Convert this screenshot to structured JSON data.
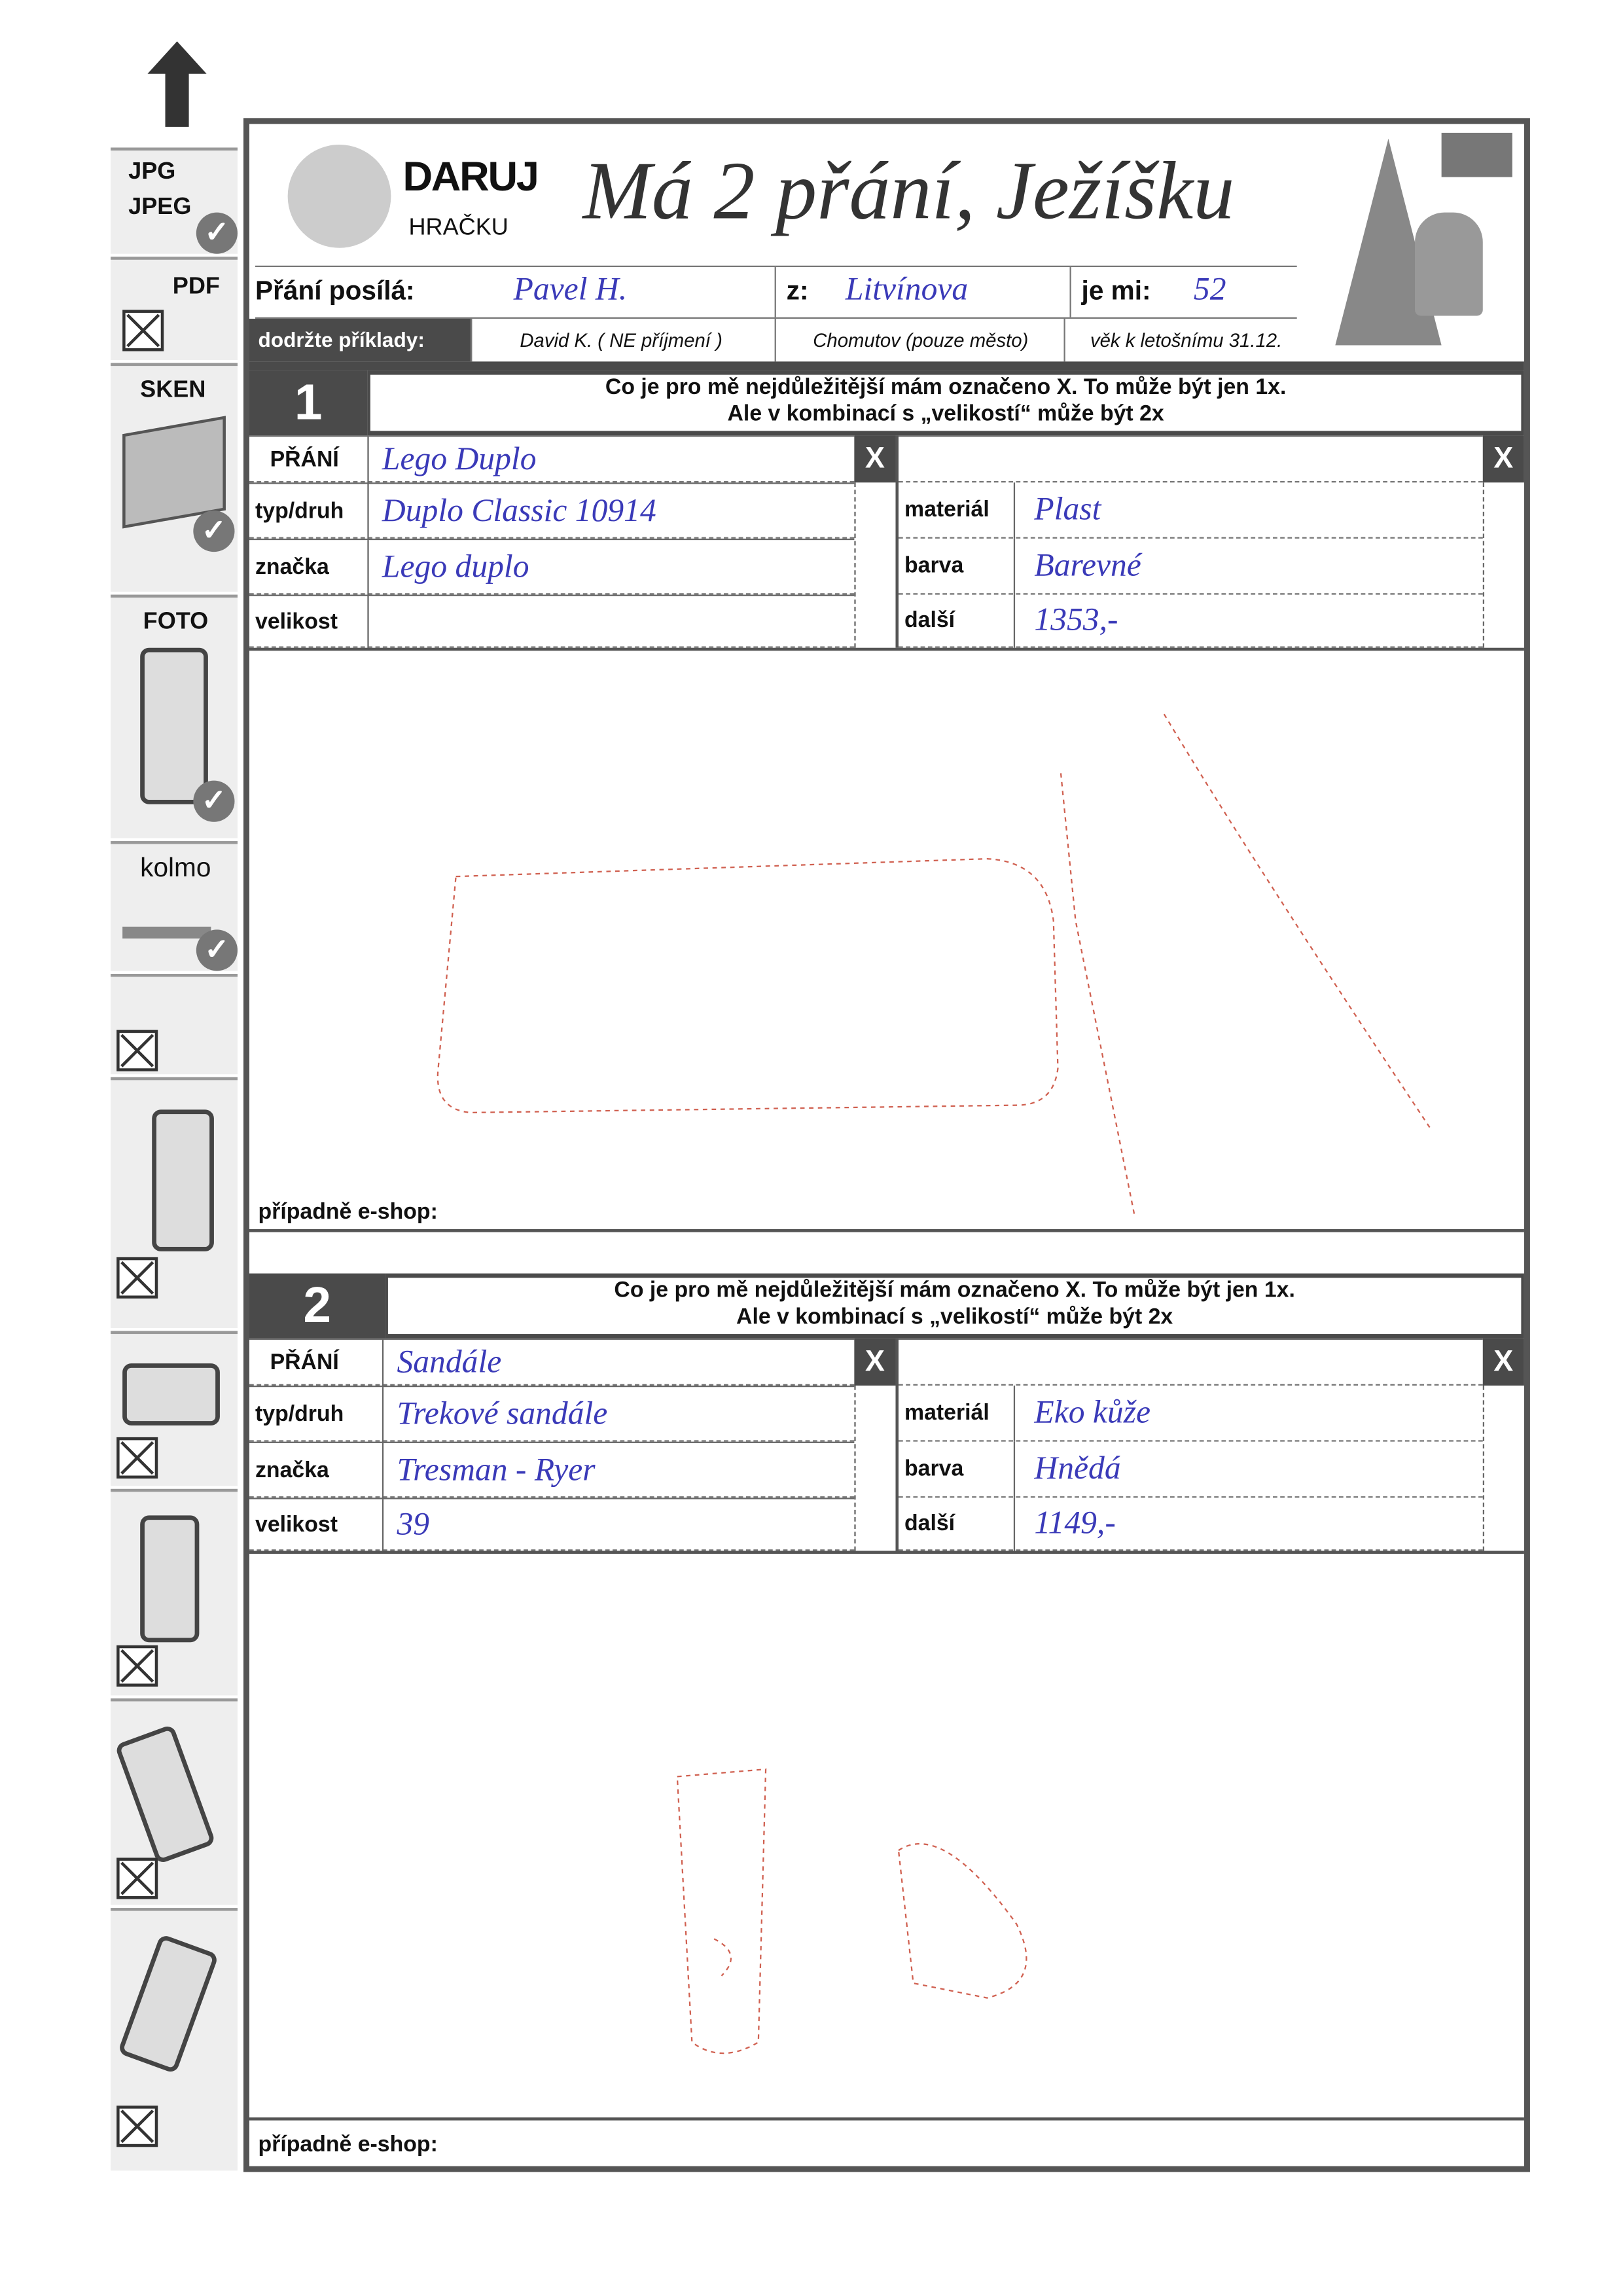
{
  "sidebar": {
    "jpg": "JPG",
    "jpeg": "JPEG",
    "pdf": "PDF",
    "sken": "SKEN",
    "foto": "FOTO",
    "kolmo": "kolmo",
    "icons": [
      "up-arrow-icon",
      "check-icon",
      "cross-icon",
      "scanner-icon",
      "phone-hand-icon",
      "camera-perpendicular-icon"
    ]
  },
  "header": {
    "logo_line1": "DARUJ",
    "logo_line2": "HRAČKU",
    "title": "Má 2 přání, Ježíšku",
    "sender_label": "Přání posílá:",
    "sender_value": "Pavel H.",
    "from_label": "z:",
    "from_value": "Litvínova",
    "age_label": "je mi:",
    "age_value": "52",
    "examples_label": "dodržte příklady:",
    "example_name": "David K. ( NE příjmení )",
    "example_city": "Chomutov  (pouze město)",
    "example_age": "věk k letošnímu 31.12."
  },
  "sections": [
    {
      "number": "1",
      "instruction1": "Co je pro mě nejdůležitější mám označeno X.  To může být jen 1x.",
      "instruction2": "Ale v kombinací s „velikostí“ může být 2x",
      "x_mark": "X",
      "labels": {
        "wish": "PŘÁNÍ",
        "type": "typ/druh",
        "brand": "značka",
        "size": "velikost",
        "material": "materiál",
        "color": "barva",
        "other": "další"
      },
      "values": {
        "wish": "Lego Duplo",
        "type": "Duplo Classic 10914",
        "brand": "Lego duplo",
        "size": "",
        "material": "Plast",
        "color": "Barevné",
        "other": "1353,-"
      },
      "eshop_label": "případně e-shop:"
    },
    {
      "number": "2",
      "instruction1": "Co je pro mě nejdůležitější mám označeno X.  To může být jen 1x.",
      "instruction2": "Ale v kombinací s „velikostí“ může být 2x",
      "x_mark": "X",
      "labels": {
        "wish": "PŘÁNÍ",
        "type": "typ/druh",
        "brand": "značka",
        "size": "velikost",
        "material": "materiál",
        "color": "barva",
        "other": "další"
      },
      "values": {
        "wish": "Sandále",
        "type": "Trekové sandále",
        "brand": "Tresman - Ryer",
        "size": "39",
        "material": "Eko kůže",
        "color": "Hnědá",
        "other": "1149,-"
      },
      "eshop_label": "případně e-shop:"
    }
  ],
  "colors": {
    "ink": "#3a3ab8",
    "sketch": "#d06050",
    "frame": "#555555"
  }
}
